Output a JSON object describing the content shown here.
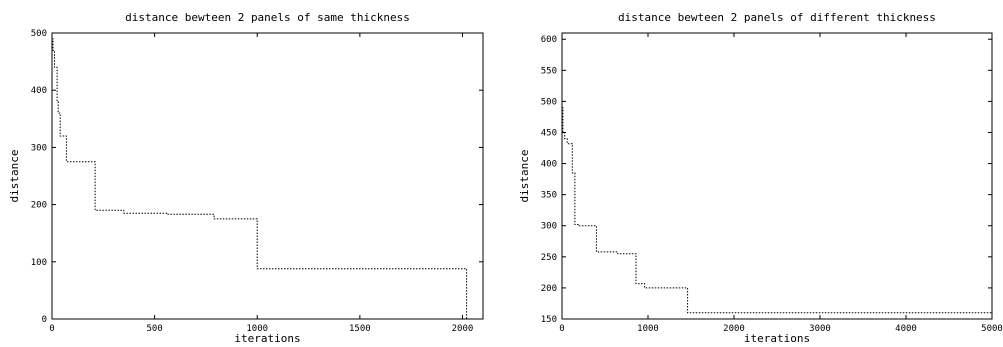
{
  "chart_data": [
    {
      "type": "line",
      "title": "distance bewteen 2 panels of same thickness",
      "xlabel": "iterations",
      "ylabel": "distance",
      "xlim": [
        0,
        2100
      ],
      "ylim": [
        0,
        500
      ],
      "xticks": [
        0,
        500,
        1000,
        1500,
        2000
      ],
      "yticks": [
        0,
        100,
        200,
        300,
        400,
        500
      ],
      "grid": false,
      "legend": "none",
      "line_style": "dotted",
      "series": [
        {
          "x": [
            0,
            5,
            5,
            12,
            12,
            25,
            25,
            30,
            30,
            40,
            40,
            70,
            70,
            210,
            210,
            350,
            350,
            560,
            560,
            790,
            790,
            1000,
            1000,
            2020,
            2020
          ],
          "y": [
            490,
            490,
            470,
            470,
            440,
            440,
            380,
            380,
            360,
            360,
            320,
            320,
            275,
            275,
            190,
            190,
            185,
            185,
            183,
            183,
            175,
            175,
            88,
            88,
            0
          ]
        }
      ]
    },
    {
      "type": "line",
      "title": "distance bewteen 2 panels of different thickness",
      "xlabel": "iterations",
      "ylabel": "distance",
      "xlim": [
        0,
        5000
      ],
      "ylim": [
        150,
        610
      ],
      "xticks": [
        0,
        1000,
        2000,
        3000,
        4000,
        5000
      ],
      "yticks": [
        150,
        200,
        250,
        300,
        350,
        400,
        450,
        500,
        550,
        600
      ],
      "grid": false,
      "legend": "none",
      "line_style": "dotted",
      "series": [
        {
          "x": [
            0,
            10,
            10,
            30,
            30,
            60,
            60,
            120,
            120,
            150,
            150,
            200,
            200,
            400,
            400,
            650,
            650,
            860,
            860,
            960,
            960,
            1460,
            1460,
            5000
          ],
          "y": [
            490,
            490,
            450,
            450,
            440,
            440,
            432,
            432,
            385,
            385,
            302,
            302,
            300,
            300,
            258,
            258,
            255,
            255,
            207,
            207,
            200,
            200,
            160,
            160
          ]
        }
      ]
    }
  ]
}
